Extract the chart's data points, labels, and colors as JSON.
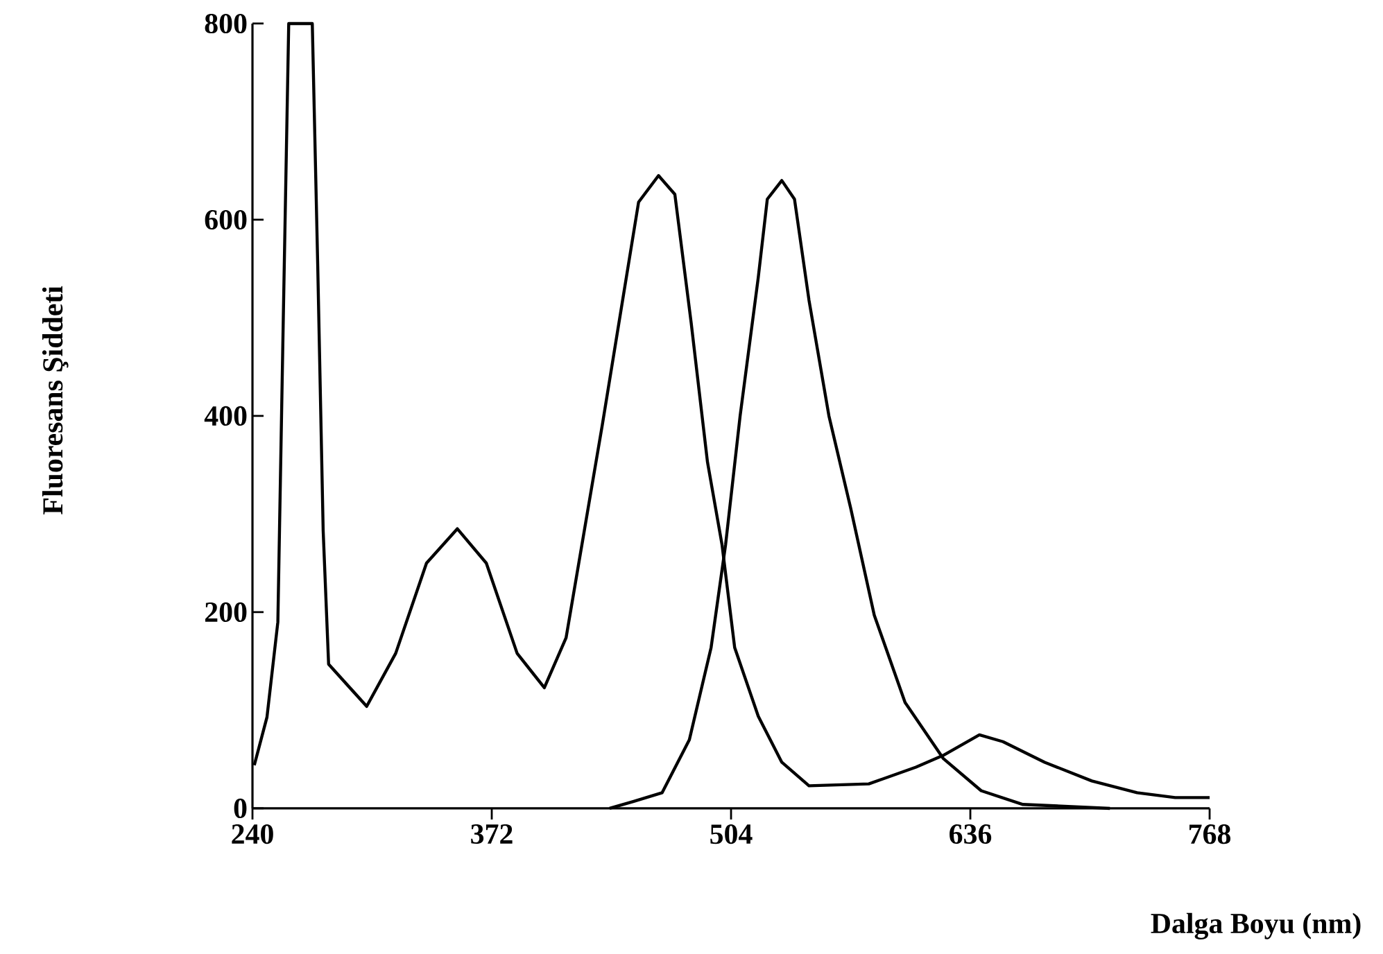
{
  "chart_data": {
    "type": "line",
    "xlabel": "Dalga Boyu (nm)",
    "ylabel": "Fluoresans Şiddeti",
    "xlim": [
      240,
      768
    ],
    "ylim": [
      0,
      800
    ],
    "xticks": [
      240,
      372,
      504,
      636,
      768
    ],
    "yticks": [
      0,
      200,
      400,
      600,
      800
    ],
    "series": [
      {
        "color": "#000000",
        "x": [
          241,
          248,
          254,
          257,
          260,
          273,
          276,
          279,
          282,
          303,
          319,
          336,
          353,
          369,
          386,
          401,
          413,
          433,
          453,
          464,
          473,
          482,
          491,
          499,
          506,
          519,
          532,
          547,
          580,
          606,
          621,
          641,
          654,
          677,
          703,
          728,
          749,
          768
        ],
        "values": [
          44,
          93,
          190,
          499,
          800,
          800,
          553,
          283,
          147,
          104,
          158,
          250,
          285,
          250,
          158,
          123,
          174,
          391,
          618,
          645,
          626,
          495,
          353,
          269,
          164,
          94,
          47,
          23,
          25,
          42,
          54,
          75,
          68,
          47,
          28,
          16,
          11,
          11
        ]
      },
      {
        "color": "#000000",
        "x": [
          437,
          450,
          466,
          481,
          493,
          501,
          509,
          519,
          524,
          532,
          539,
          547,
          558,
          570,
          583,
          600,
          621,
          642,
          665,
          690,
          713
        ],
        "values": [
          0,
          7,
          16,
          70,
          164,
          269,
          400,
          541,
          621,
          640,
          621,
          518,
          400,
          306,
          197,
          108,
          51,
          18,
          4,
          2,
          0
        ]
      }
    ]
  }
}
